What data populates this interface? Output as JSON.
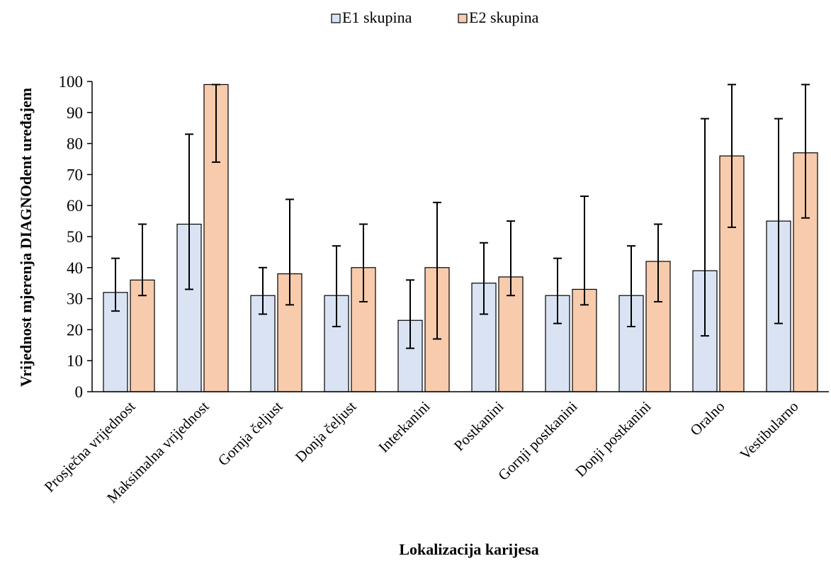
{
  "chart_data": {
    "type": "bar",
    "title": "",
    "xlabel": "Lokalizacija karijesa",
    "ylabel": "Vrijednost mjerenja DIAGNOdent uređajem",
    "ylim": [
      0,
      100
    ],
    "yticks": [
      0,
      10,
      20,
      30,
      40,
      50,
      60,
      70,
      80,
      90,
      100
    ],
    "grid": false,
    "legend_position": "top-center",
    "categories": [
      "Prosječna vrijednost",
      "Maksimalna vrijednost",
      "Gornja čeljust",
      "Donja čeljust",
      "Interkanini",
      "Postkanini",
      "Gornji postkanini",
      "Donji postkanini",
      "Oralno",
      "Vestibularno"
    ],
    "series": [
      {
        "name": "E1 skupina",
        "color": "#dae3f3",
        "values": [
          32,
          54,
          31,
          31,
          23,
          35,
          31,
          31,
          39,
          55
        ],
        "error_low": [
          26,
          33,
          25,
          21,
          14,
          25,
          22,
          21,
          18,
          22
        ],
        "error_high": [
          43,
          83,
          40,
          47,
          36,
          48,
          43,
          47,
          88,
          88
        ]
      },
      {
        "name": "E2 skupina",
        "color": "#f8cbad",
        "values": [
          36,
          99,
          38,
          40,
          40,
          37,
          33,
          42,
          76,
          77
        ],
        "error_low": [
          31,
          74,
          28,
          29,
          17,
          31,
          28,
          29,
          53,
          56
        ],
        "error_high": [
          54,
          99,
          62,
          54,
          61,
          55,
          63,
          54,
          99,
          99
        ]
      }
    ]
  }
}
